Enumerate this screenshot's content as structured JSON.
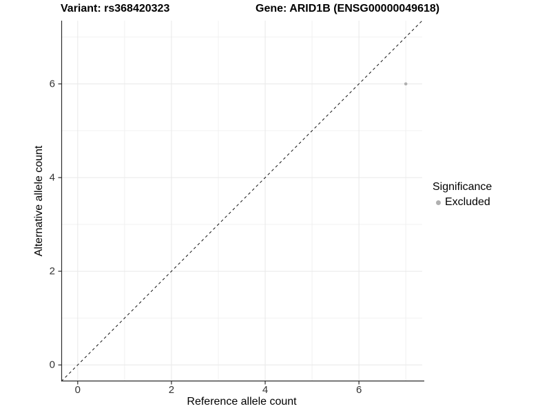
{
  "chart_data": {
    "type": "scatter",
    "title_left": "Variant: rs368420323",
    "title_right": "Gene: ARID1B (ENSG00000049618)",
    "xlabel": "Reference allele count",
    "ylabel": "Alternative allele count",
    "xlim": [
      -0.35,
      7.35
    ],
    "ylim": [
      -0.35,
      7.35
    ],
    "xticks": [
      0,
      2,
      4,
      6
    ],
    "yticks": [
      0,
      2,
      4,
      6
    ],
    "minor_gridlines_x": [
      1,
      3,
      5,
      7
    ],
    "minor_gridlines_y": [
      1,
      3,
      5,
      7
    ],
    "grid": true,
    "points": [
      {
        "x": 7,
        "y": 6,
        "series": "Excluded",
        "color": "#b0b0b0"
      }
    ],
    "reference_line": {
      "equation": "y = x",
      "style": "dashed",
      "color": "#111111"
    },
    "legend": {
      "title": "Significance",
      "position": "right",
      "entries": [
        {
          "label": "Excluded",
          "color": "#b0b0b0"
        }
      ]
    },
    "colors": {
      "background": "#ffffff",
      "grid_major": "#e8e8e8",
      "grid_minor": "#f0f0f0",
      "axis_line": "#2b2b2b",
      "tick_label": "#333333",
      "point": "#b0b0b0"
    }
  }
}
